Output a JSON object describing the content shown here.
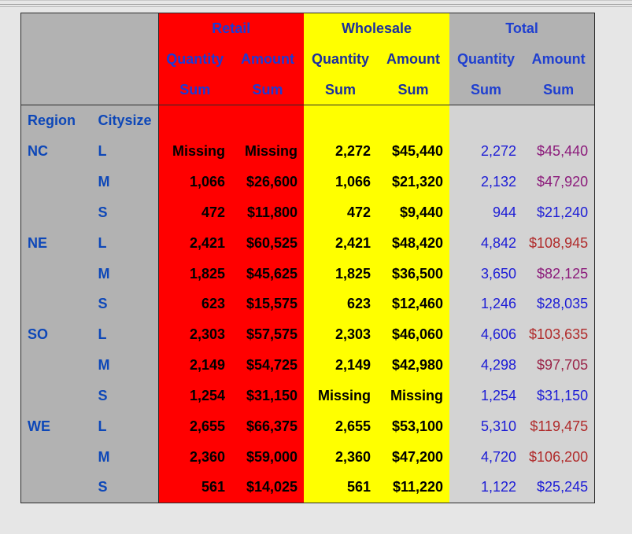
{
  "headers": {
    "groups": [
      "Retail",
      "Wholesale",
      "Total"
    ],
    "measures": [
      "Quantity",
      "Amount",
      "Quantity",
      "Amount",
      "Quantity",
      "Amount"
    ],
    "stats": [
      "Sum",
      "Sum",
      "Sum",
      "Sum",
      "Sum",
      "Sum"
    ],
    "row_labels": [
      "Region",
      "Citysize"
    ]
  },
  "colors": {
    "retail": "#ff0000",
    "wholesale": "#ffff00",
    "total_header": "#b2b2b2",
    "total_cells": "#d3d3d3"
  },
  "rows": [
    {
      "region": "NC",
      "citysize": "L",
      "rq": "Missing",
      "ra": "Missing",
      "wq": "2,272",
      "wa": "$45,440",
      "tq": "2,272",
      "ta": "$45,440",
      "tcolor": "#8b1a7a"
    },
    {
      "region": "",
      "citysize": "M",
      "rq": "1,066",
      "ra": "$26,600",
      "wq": "1,066",
      "wa": "$21,320",
      "tq": "2,132",
      "ta": "$47,920",
      "tcolor": "#8b1a7a"
    },
    {
      "region": "",
      "citysize": "S",
      "rq": "472",
      "ra": "$11,800",
      "wq": "472",
      "wa": "$9,440",
      "tq": "944",
      "ta": "$21,240",
      "tcolor": "#1c1cd6"
    },
    {
      "region": "NE",
      "citysize": "L",
      "rq": "2,421",
      "ra": "$60,525",
      "wq": "2,421",
      "wa": "$48,420",
      "tq": "4,842",
      "ta": "$108,945",
      "tcolor": "#b02a2a"
    },
    {
      "region": "",
      "citysize": "M",
      "rq": "1,825",
      "ra": "$45,625",
      "wq": "1,825",
      "wa": "$36,500",
      "tq": "3,650",
      "ta": "$82,125",
      "tcolor": "#8b1a7a"
    },
    {
      "region": "",
      "citysize": "S",
      "rq": "623",
      "ra": "$15,575",
      "wq": "623",
      "wa": "$12,460",
      "tq": "1,246",
      "ta": "$28,035",
      "tcolor": "#1c1cd6"
    },
    {
      "region": "SO",
      "citysize": "L",
      "rq": "2,303",
      "ra": "$57,575",
      "wq": "2,303",
      "wa": "$46,060",
      "tq": "4,606",
      "ta": "$103,635",
      "tcolor": "#b02a2a"
    },
    {
      "region": "",
      "citysize": "M",
      "rq": "2,149",
      "ra": "$54,725",
      "wq": "2,149",
      "wa": "$42,980",
      "tq": "4,298",
      "ta": "$97,705",
      "tcolor": "#9a2448"
    },
    {
      "region": "",
      "citysize": "S",
      "rq": "1,254",
      "ra": "$31,150",
      "wq": "Missing",
      "wa": "Missing",
      "tq": "1,254",
      "ta": "$31,150",
      "tcolor": "#1c1cd6"
    },
    {
      "region": "WE",
      "citysize": "L",
      "rq": "2,655",
      "ra": "$66,375",
      "wq": "2,655",
      "wa": "$53,100",
      "tq": "5,310",
      "ta": "$119,475",
      "tcolor": "#b02a2a"
    },
    {
      "region": "",
      "citysize": "M",
      "rq": "2,360",
      "ra": "$59,000",
      "wq": "2,360",
      "wa": "$47,200",
      "tq": "4,720",
      "ta": "$106,200",
      "tcolor": "#b02a2a"
    },
    {
      "region": "",
      "citysize": "S",
      "rq": "561",
      "ra": "$14,025",
      "wq": "561",
      "wa": "$11,220",
      "tq": "1,122",
      "ta": "$25,245",
      "tcolor": "#1c1cd6"
    }
  ]
}
